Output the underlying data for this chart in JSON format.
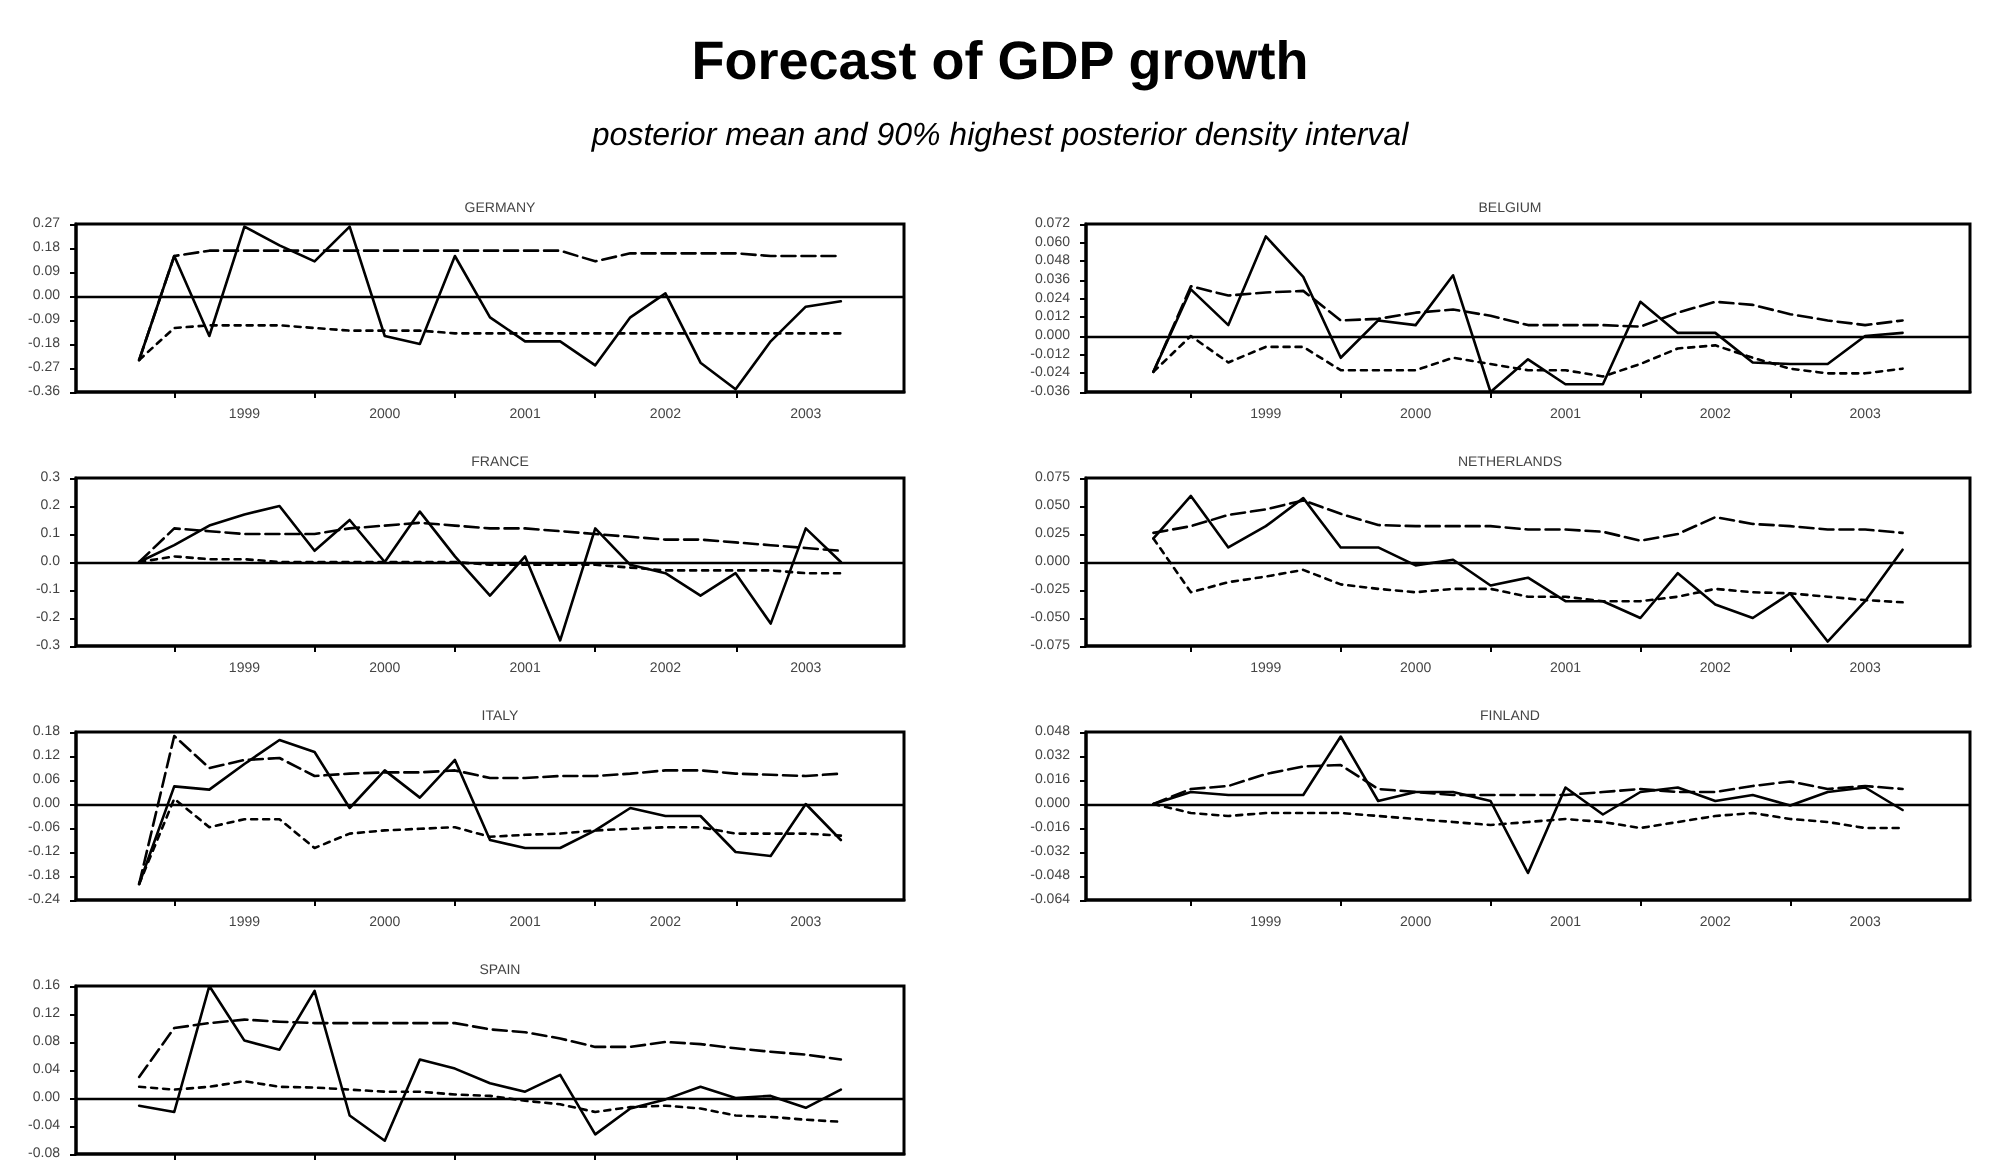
{
  "chart_data": [
    {
      "type": "other",
      "title": "Forecast of GDP growth",
      "subtitle": "posterior mean and 90% highest posterior density interval"
    },
    {
      "type": "line",
      "title": "GERMANY",
      "marker": "none",
      "grid": false,
      "x": [
        1998.75,
        1999,
        1999.25,
        1999.5,
        1999.75,
        2000,
        2000.25,
        2000.5,
        2000.75,
        2001,
        2001.25,
        2001.5,
        2001.75,
        2002,
        2002.25,
        2002.5,
        2002.75,
        2003,
        2003.25,
        2003.5,
        2003.75
      ],
      "xlim": [
        1998.3,
        2004.2
      ],
      "xticks": [
        {
          "value": 1999,
          "label": null
        },
        {
          "value": 1999.5,
          "label": "1999"
        },
        {
          "value": 2000,
          "label": null
        },
        {
          "value": 2000.5,
          "label": "2000"
        },
        {
          "value": 2001,
          "label": null
        },
        {
          "value": 2001.5,
          "label": "2001"
        },
        {
          "value": 2002,
          "label": null
        },
        {
          "value": 2002.5,
          "label": "2002"
        },
        {
          "value": 2003,
          "label": null
        },
        {
          "value": 2003.5,
          "label": "2003"
        }
      ],
      "ylim": [
        -0.36,
        0.27
      ],
      "yticks": [
        -0.36,
        -0.27,
        -0.18,
        -0.09,
        {
          "value": 0,
          "label": "0.00"
        },
        0.09,
        0.18,
        0.27
      ],
      "ref_lines": [
        {
          "axis": "y",
          "value": 0,
          "color": "#000000",
          "line_style": "solid"
        }
      ],
      "series": [
        {
          "color": "#000000",
          "line_style": "solid",
          "values": [
            -0.24,
            0.15,
            -0.15,
            0.26,
            0.19,
            0.13,
            0.26,
            -0.15,
            -0.18,
            0.15,
            -0.08,
            -0.17,
            -0.17,
            -0.26,
            -0.08,
            0.01,
            -0.25,
            -0.35,
            -0.17,
            -0.04,
            -0.02
          ]
        },
        {
          "color": "#000000",
          "line_style": "dashed",
          "values": [
            -0.24,
            0.15,
            0.17,
            0.17,
            0.17,
            0.17,
            0.17,
            0.17,
            0.17,
            0.17,
            0.17,
            0.17,
            0.17,
            0.13,
            0.16,
            0.16,
            0.16,
            0.16,
            0.15,
            0.15,
            0.15
          ]
        },
        {
          "color": "#000000",
          "line_style": "dotted",
          "values": [
            -0.24,
            -0.12,
            -0.11,
            -0.11,
            -0.11,
            -0.12,
            -0.13,
            -0.13,
            -0.13,
            -0.14,
            -0.14,
            -0.14,
            -0.14,
            -0.14,
            -0.14,
            -0.14,
            -0.14,
            -0.14,
            -0.14,
            -0.14,
            -0.14
          ]
        }
      ]
    },
    {
      "type": "line",
      "title": "BELGIUM",
      "marker": "none",
      "grid": false,
      "x": [
        1998.75,
        1999,
        1999.25,
        1999.5,
        1999.75,
        2000,
        2000.25,
        2000.5,
        2000.75,
        2001,
        2001.25,
        2001.5,
        2001.75,
        2002,
        2002.25,
        2002.5,
        2002.75,
        2003,
        2003.25,
        2003.5,
        2003.75
      ],
      "xlim": [
        1998.3,
        2004.2
      ],
      "xticks": [
        {
          "value": 1999,
          "label": null
        },
        {
          "value": 1999.5,
          "label": "1999"
        },
        {
          "value": 2000,
          "label": null
        },
        {
          "value": 2000.5,
          "label": "2000"
        },
        {
          "value": 2001,
          "label": null
        },
        {
          "value": 2001.5,
          "label": "2001"
        },
        {
          "value": 2002,
          "label": null
        },
        {
          "value": 2002.5,
          "label": "2002"
        },
        {
          "value": 2003,
          "label": null
        },
        {
          "value": 2003.5,
          "label": "2003"
        }
      ],
      "ylim": [
        -0.036,
        0.072
      ],
      "yticks": [
        -0.036,
        -0.024,
        -0.012,
        {
          "value": 0,
          "label": "0.000"
        },
        0.012,
        0.024,
        0.036,
        0.048,
        {
          "value": 0.06,
          "label": "0.060"
        },
        0.072
      ],
      "ref_lines": [
        {
          "axis": "y",
          "value": 0,
          "color": "#000000",
          "line_style": "solid"
        }
      ],
      "series": [
        {
          "color": "#000000",
          "line_style": "solid",
          "values": [
            -0.023,
            0.03,
            0.007,
            0.064,
            0.038,
            -0.014,
            0.01,
            0.007,
            0.039,
            -0.036,
            -0.015,
            -0.031,
            -0.031,
            0.022,
            0.002,
            0.002,
            -0.017,
            -0.018,
            -0.018,
            0,
            0.002
          ]
        },
        {
          "color": "#000000",
          "line_style": "dashed",
          "values": [
            -0.023,
            0.032,
            0.026,
            0.028,
            0.029,
            0.01,
            0.011,
            0.015,
            0.017,
            0.013,
            0.007,
            0.007,
            0.007,
            0.006,
            0.015,
            0.022,
            0.02,
            0.014,
            0.01,
            0.007,
            0.01
          ]
        },
        {
          "color": "#000000",
          "line_style": "dotted",
          "values": [
            -0.023,
            0,
            -0.017,
            -0.007,
            -0.007,
            -0.022,
            -0.022,
            -0.022,
            -0.014,
            -0.018,
            -0.022,
            -0.022,
            -0.026,
            -0.018,
            -0.008,
            -0.006,
            -0.014,
            -0.021,
            -0.024,
            -0.024,
            -0.021
          ]
        }
      ]
    },
    {
      "type": "line",
      "title": "FRANCE",
      "marker": "none",
      "grid": false,
      "x": [
        1998.75,
        1999,
        1999.25,
        1999.5,
        1999.75,
        2000,
        2000.25,
        2000.5,
        2000.75,
        2001,
        2001.25,
        2001.5,
        2001.75,
        2002,
        2002.25,
        2002.5,
        2002.75,
        2003,
        2003.25,
        2003.5,
        2003.75
      ],
      "xlim": [
        1998.3,
        2004.2
      ],
      "xticks": [
        {
          "value": 1999,
          "label": null
        },
        {
          "value": 1999.5,
          "label": "1999"
        },
        {
          "value": 2000,
          "label": null
        },
        {
          "value": 2000.5,
          "label": "2000"
        },
        {
          "value": 2001,
          "label": null
        },
        {
          "value": 2001.5,
          "label": "2001"
        },
        {
          "value": 2002,
          "label": null
        },
        {
          "value": 2002.5,
          "label": "2002"
        },
        {
          "value": 2003,
          "label": null
        },
        {
          "value": 2003.5,
          "label": "2003"
        }
      ],
      "ylim": [
        -0.3,
        0.3
      ],
      "yticks": [
        -0.3,
        -0.2,
        -0.1,
        {
          "value": 0,
          "label": "0.0"
        },
        0.1,
        0.2,
        0.3
      ],
      "ref_lines": [
        {
          "axis": "y",
          "value": 0,
          "color": "#000000",
          "line_style": "solid"
        }
      ],
      "series": [
        {
          "color": "#000000",
          "line_style": "solid",
          "values": [
            0,
            0.06,
            0.13,
            0.17,
            0.2,
            0.04,
            0.15,
            0,
            0.18,
            0.02,
            -0.12,
            0.02,
            -0.28,
            0.12,
            -0.01,
            -0.04,
            -0.12,
            -0.04,
            -0.22,
            0.12,
            0
          ]
        },
        {
          "color": "#000000",
          "line_style": "dashed",
          "values": [
            0,
            0.12,
            0.11,
            0.1,
            0.1,
            0.1,
            0.12,
            0.13,
            0.14,
            0.13,
            0.12,
            0.12,
            0.11,
            0.1,
            0.09,
            0.08,
            0.08,
            0.07,
            0.06,
            0.05,
            0.04
          ]
        },
        {
          "color": "#000000",
          "line_style": "dotted",
          "values": [
            0,
            0.02,
            0.01,
            0.01,
            0,
            0,
            0,
            0,
            0,
            0,
            -0.01,
            -0.01,
            -0.01,
            -0.01,
            -0.02,
            -0.03,
            -0.03,
            -0.03,
            -0.03,
            -0.04,
            -0.04
          ]
        }
      ]
    },
    {
      "type": "line",
      "title": "NETHERLANDS",
      "marker": "none",
      "grid": false,
      "x": [
        1998.75,
        1999,
        1999.25,
        1999.5,
        1999.75,
        2000,
        2000.25,
        2000.5,
        2000.75,
        2001,
        2001.25,
        2001.5,
        2001.75,
        2002,
        2002.25,
        2002.5,
        2002.75,
        2003,
        2003.25,
        2003.5,
        2003.75
      ],
      "xlim": [
        1998.3,
        2004.2
      ],
      "xticks": [
        {
          "value": 1999,
          "label": null
        },
        {
          "value": 1999.5,
          "label": "1999"
        },
        {
          "value": 2000,
          "label": null
        },
        {
          "value": 2000.5,
          "label": "2000"
        },
        {
          "value": 2001,
          "label": null
        },
        {
          "value": 2001.5,
          "label": "2001"
        },
        {
          "value": 2002,
          "label": null
        },
        {
          "value": 2002.5,
          "label": "2002"
        },
        {
          "value": 2003,
          "label": null
        },
        {
          "value": 2003.5,
          "label": "2003"
        }
      ],
      "ylim": [
        -0.075,
        0.075
      ],
      "yticks": [
        -0.075,
        {
          "value": -0.05,
          "label": "-0.050"
        },
        -0.025,
        {
          "value": 0,
          "label": "0.000"
        },
        0.025,
        {
          "value": 0.05,
          "label": "0.050"
        },
        0.075
      ],
      "ref_lines": [
        {
          "axis": "y",
          "value": 0,
          "color": "#000000",
          "line_style": "solid"
        }
      ],
      "series": [
        {
          "color": "#000000",
          "line_style": "solid",
          "values": [
            0.021,
            0.059,
            0.013,
            0.032,
            0.057,
            0.013,
            0.013,
            -0.003,
            0.002,
            -0.021,
            -0.014,
            -0.035,
            -0.035,
            -0.05,
            -0.01,
            -0.038,
            -0.05,
            -0.028,
            -0.071,
            -0.035,
            0.011
          ]
        },
        {
          "color": "#000000",
          "line_style": "dashed",
          "values": [
            0.026,
            0.032,
            0.042,
            0.047,
            0.055,
            0.043,
            0.033,
            0.032,
            0.032,
            0.032,
            0.029,
            0.029,
            0.027,
            0.019,
            0.025,
            0.04,
            0.034,
            0.032,
            0.029,
            0.029,
            0.026
          ]
        },
        {
          "color": "#000000",
          "line_style": "dotted",
          "values": [
            0.021,
            -0.027,
            -0.018,
            -0.013,
            -0.007,
            -0.02,
            -0.024,
            -0.027,
            -0.024,
            -0.024,
            -0.031,
            -0.031,
            -0.035,
            -0.035,
            -0.031,
            -0.024,
            -0.027,
            -0.028,
            -0.031,
            -0.034,
            -0.036
          ]
        }
      ]
    },
    {
      "type": "line",
      "title": "ITALY",
      "marker": "none",
      "grid": false,
      "x": [
        1998.75,
        1999,
        1999.25,
        1999.5,
        1999.75,
        2000,
        2000.25,
        2000.5,
        2000.75,
        2001,
        2001.25,
        2001.5,
        2001.75,
        2002,
        2002.25,
        2002.5,
        2002.75,
        2003,
        2003.25,
        2003.5,
        2003.75
      ],
      "xlim": [
        1998.3,
        2004.2
      ],
      "xticks": [
        {
          "value": 1999,
          "label": null
        },
        {
          "value": 1999.5,
          "label": "1999"
        },
        {
          "value": 2000,
          "label": null
        },
        {
          "value": 2000.5,
          "label": "2000"
        },
        {
          "value": 2001,
          "label": null
        },
        {
          "value": 2001.5,
          "label": "2001"
        },
        {
          "value": 2002,
          "label": null
        },
        {
          "value": 2002.5,
          "label": "2002"
        },
        {
          "value": 2003,
          "label": null
        },
        {
          "value": 2003.5,
          "label": "2003"
        }
      ],
      "ylim": [
        -0.24,
        0.18
      ],
      "yticks": [
        -0.24,
        -0.18,
        -0.12,
        -0.06,
        {
          "value": 0,
          "label": "0.00"
        },
        0.06,
        0.12,
        0.18
      ],
      "ref_lines": [
        {
          "axis": "y",
          "value": 0,
          "color": "#000000",
          "line_style": "solid"
        }
      ],
      "series": [
        {
          "color": "#000000",
          "line_style": "solid",
          "values": [
            -0.2,
            0.044,
            0.036,
            0.1,
            0.16,
            0.13,
            -0.01,
            0.084,
            0.016,
            0.11,
            -0.09,
            -0.11,
            -0.11,
            -0.066,
            -0.01,
            -0.03,
            -0.03,
            -0.12,
            -0.13,
            0,
            -0.09
          ]
        },
        {
          "color": "#000000",
          "line_style": "dashed",
          "values": [
            -0.2,
            0.17,
            0.09,
            0.11,
            0.115,
            0.07,
            0.076,
            0.079,
            0.079,
            0.084,
            0.065,
            0.065,
            0.07,
            0.07,
            0.076,
            0.084,
            0.084,
            0.076,
            0.073,
            0.07,
            0.076
          ]
        },
        {
          "color": "#000000",
          "line_style": "dotted",
          "values": [
            -0.2,
            0.013,
            -0.058,
            -0.038,
            -0.038,
            -0.11,
            -0.074,
            -0.066,
            -0.062,
            -0.058,
            -0.082,
            -0.077,
            -0.074,
            -0.066,
            -0.062,
            -0.058,
            -0.058,
            -0.074,
            -0.074,
            -0.074,
            -0.079
          ]
        }
      ]
    },
    {
      "type": "line",
      "title": "FINLAND",
      "marker": "none",
      "grid": false,
      "x": [
        1998.75,
        1999,
        1999.25,
        1999.5,
        1999.75,
        2000,
        2000.25,
        2000.5,
        2000.75,
        2001,
        2001.25,
        2001.5,
        2001.75,
        2002,
        2002.25,
        2002.5,
        2002.75,
        2003,
        2003.25,
        2003.5,
        2003.75
      ],
      "xlim": [
        1998.3,
        2004.2
      ],
      "xticks": [
        {
          "value": 1999,
          "label": null
        },
        {
          "value": 1999.5,
          "label": "1999"
        },
        {
          "value": 2000,
          "label": null
        },
        {
          "value": 2000.5,
          "label": "2000"
        },
        {
          "value": 2001,
          "label": null
        },
        {
          "value": 2001.5,
          "label": "2001"
        },
        {
          "value": 2002,
          "label": null
        },
        {
          "value": 2002.5,
          "label": "2002"
        },
        {
          "value": 2003,
          "label": null
        },
        {
          "value": 2003.5,
          "label": "2003"
        }
      ],
      "ylim": [
        -0.064,
        0.048
      ],
      "yticks": [
        -0.064,
        -0.048,
        -0.032,
        -0.016,
        {
          "value": 0,
          "label": "0.000"
        },
        0.016,
        0.032,
        0.048
      ],
      "ref_lines": [
        {
          "axis": "y",
          "value": 0,
          "color": "#000000",
          "line_style": "solid"
        }
      ],
      "series": [
        {
          "color": "#000000",
          "line_style": "solid",
          "values": [
            0,
            0.008,
            0.006,
            0.006,
            0.006,
            0.045,
            0.002,
            0.008,
            0.008,
            0.002,
            -0.046,
            0.011,
            -0.007,
            0.008,
            0.011,
            0.002,
            0.006,
            -0.001,
            0.008,
            0.011,
            -0.004
          ]
        },
        {
          "color": "#000000",
          "line_style": "dashed",
          "values": [
            0,
            0.01,
            0.012,
            0.02,
            0.025,
            0.026,
            0.01,
            0.008,
            0.006,
            0.006,
            0.006,
            0.006,
            0.008,
            0.01,
            0.008,
            0.008,
            0.012,
            0.015,
            0.01,
            0.012,
            0.01
          ]
        },
        {
          "color": "#000000",
          "line_style": "dotted",
          "values": [
            0,
            -0.006,
            -0.008,
            -0.006,
            -0.006,
            -0.006,
            -0.008,
            -0.01,
            -0.012,
            -0.014,
            -0.012,
            -0.01,
            -0.012,
            -0.016,
            -0.012,
            -0.008,
            -0.006,
            -0.01,
            -0.012,
            -0.016,
            -0.016
          ]
        }
      ]
    },
    {
      "type": "line",
      "title": "SPAIN",
      "marker": "none",
      "grid": false,
      "tick_labels": "y",
      "x": [
        1998.75,
        1999,
        1999.25,
        1999.5,
        1999.75,
        2000,
        2000.25,
        2000.5,
        2000.75,
        2001,
        2001.25,
        2001.5,
        2001.75,
        2002,
        2002.25,
        2002.5,
        2002.75,
        2003,
        2003.25,
        2003.5,
        2003.75
      ],
      "xlim": [
        1998.3,
        2004.2
      ],
      "xticks": [
        {
          "value": 1999,
          "label": null
        },
        {
          "value": 2000,
          "label": null
        },
        {
          "value": 2001,
          "label": null
        },
        {
          "value": 2002,
          "label": null
        },
        {
          "value": 2003,
          "label": null
        }
      ],
      "ylim": [
        -0.08,
        0.16
      ],
      "yticks": [
        -0.08,
        -0.04,
        {
          "value": 0,
          "label": "0.00"
        },
        0.04,
        0.08,
        0.12,
        0.16
      ],
      "ref_lines": [
        {
          "axis": "y",
          "value": 0,
          "color": "#000000",
          "line_style": "solid"
        }
      ],
      "series": [
        {
          "color": "#000000",
          "line_style": "solid",
          "values": [
            -0.011,
            -0.02,
            0.16,
            0.082,
            0.069,
            0.153,
            -0.025,
            -0.061,
            0.055,
            0.042,
            0.021,
            0.009,
            0.033,
            -0.052,
            -0.015,
            -0.002,
            0.016,
            0,
            0.003,
            -0.014,
            0.012
          ]
        },
        {
          "color": "#000000",
          "line_style": "dashed",
          "values": [
            0.03,
            0.1,
            0.107,
            0.112,
            0.109,
            0.107,
            0.107,
            0.107,
            0.107,
            0.107,
            0.098,
            0.094,
            0.085,
            0.073,
            0.073,
            0.08,
            0.077,
            0.071,
            0.066,
            0.062,
            0.055
          ]
        },
        {
          "color": "#000000",
          "line_style": "dotted",
          "values": [
            0.016,
            0.012,
            0.016,
            0.024,
            0.016,
            0.015,
            0.012,
            0.009,
            0.009,
            0.005,
            0.003,
            -0.004,
            -0.009,
            -0.02,
            -0.013,
            -0.011,
            -0.015,
            -0.025,
            -0.027,
            -0.031,
            -0.034
          ]
        }
      ]
    }
  ]
}
